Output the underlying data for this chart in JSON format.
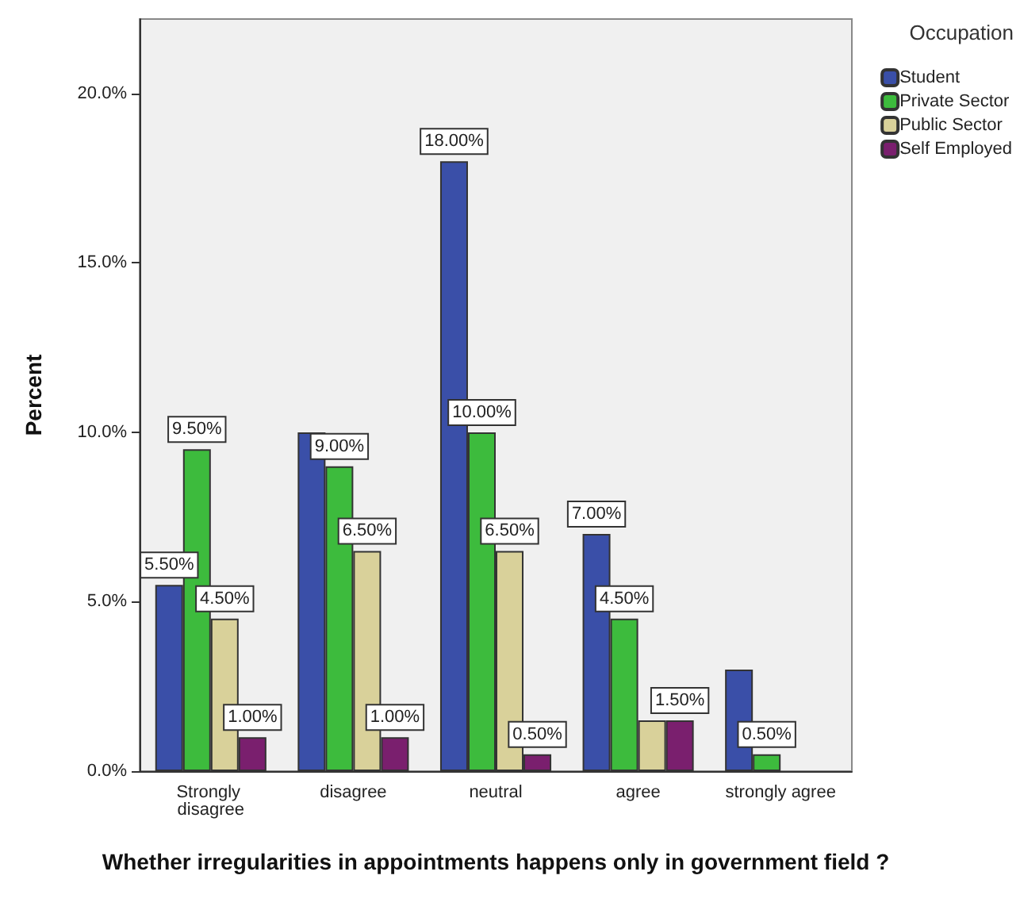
{
  "chart_data": {
    "type": "bar",
    "xlabel": "Whether irregularities in appointments happens only in government field ?",
    "ylabel": "Percent",
    "legend_title": "Occupation",
    "legend": "top right",
    "grid": false,
    "categories": [
      "Strongly disagree",
      "disagree",
      "neutral",
      "agree",
      "strongly agree"
    ],
    "ylim": [
      0,
      22.2
    ],
    "yticks": [
      {
        "value": 0,
        "label": "0.0%"
      },
      {
        "value": 5,
        "label": "5.0%"
      },
      {
        "value": 10,
        "label": "10.0%"
      },
      {
        "value": 15,
        "label": "15.0%"
      },
      {
        "value": 20,
        "label": "20.0%"
      }
    ],
    "series": [
      {
        "name": "Student",
        "color": "#3a4fa8",
        "values": [
          5.5,
          10,
          18,
          7,
          3
        ],
        "value_labels": [
          "5.50%",
          null,
          "18.00%",
          "7.00%",
          null
        ]
      },
      {
        "name": "Private Sector",
        "color": "#3dbb3d",
        "values": [
          9.5,
          9,
          10,
          4.5,
          0.5
        ],
        "value_labels": [
          "9.50%",
          "9.00%",
          "10.00%",
          "4.50%",
          "0.50%"
        ]
      },
      {
        "name": "Public Sector",
        "color": "#d9d19a",
        "values": [
          4.5,
          6.5,
          6.5,
          1.5,
          null
        ],
        "value_labels": [
          "4.50%",
          "6.50%",
          "6.50%",
          null,
          null
        ]
      },
      {
        "name": "Self Employed",
        "color": "#7a1f6e",
        "values": [
          1,
          1,
          0.5,
          1.5,
          null
        ],
        "value_labels": [
          "1.00%",
          "1.00%",
          "0.50%",
          "1.50%",
          null
        ]
      }
    ]
  }
}
